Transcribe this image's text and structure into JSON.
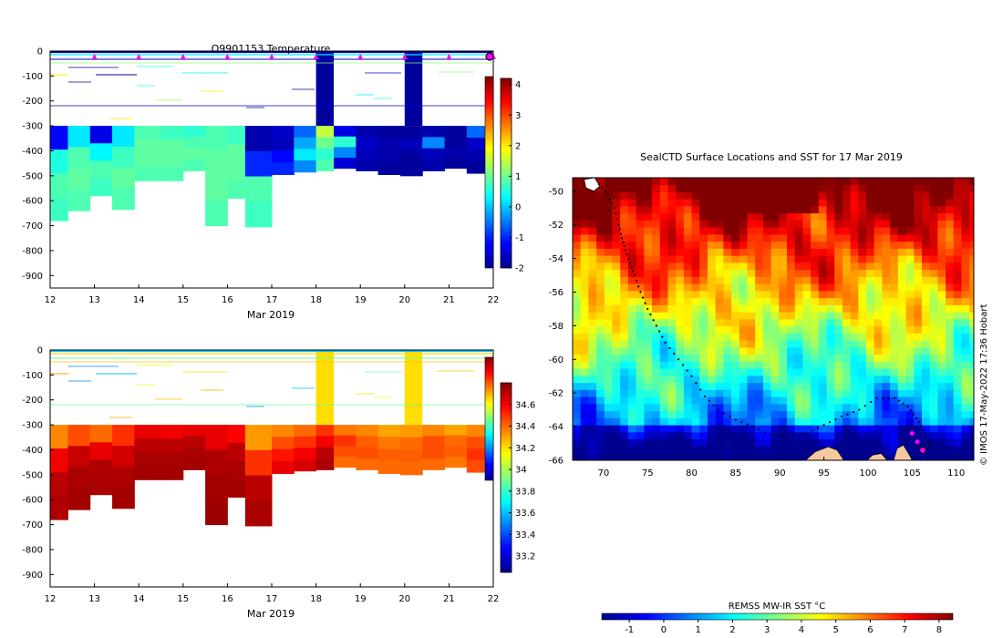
{
  "temperature_panel": {
    "title": "Q9901153  Temperature",
    "xlabel": "Mar 2019",
    "x_ticks": [
      "12",
      "13",
      "14",
      "15",
      "16",
      "17",
      "18",
      "19",
      "20",
      "21",
      "22"
    ],
    "y_ticks": [
      "0",
      "-100",
      "-200",
      "-300",
      "-400",
      "-500",
      "-600",
      "-700",
      "-800",
      "-900"
    ],
    "colorbar_ticks": [
      "4",
      "3",
      "2",
      "1",
      "0",
      "-1",
      "-2"
    ]
  },
  "salinity_panel": {
    "xlabel": "Mar 2019",
    "x_ticks": [
      "12",
      "13",
      "14",
      "15",
      "16",
      "17",
      "18",
      "19",
      "20",
      "21",
      "22"
    ],
    "y_ticks": [
      "0",
      "-100",
      "-200",
      "-300",
      "-400",
      "-500",
      "-600",
      "-700",
      "-800",
      "-900"
    ],
    "colorbar_ticks": [
      "34.6",
      "34.4",
      "34.2",
      "34",
      "33.8",
      "33.6",
      "33.4",
      "33.2"
    ]
  },
  "map_panel": {
    "title": "SealCTD Surface Locations and SST for 17 Mar 2019",
    "lon_ticks": [
      "70",
      "75",
      "80",
      "85",
      "90",
      "95",
      "100",
      "105",
      "110"
    ],
    "lat_ticks": [
      "-50",
      "-52",
      "-54",
      "-56",
      "-58",
      "-60",
      "-62",
      "-64",
      "-66"
    ],
    "credit": "© IMOS 17-May-2022 17:36 Hobart",
    "colorbar_title": "REMSS MW-IR SST °C",
    "colorbar_ticks": [
      "-1",
      "0",
      "1",
      "2",
      "3",
      "4",
      "5",
      "6",
      "7",
      "8"
    ]
  },
  "colors": {
    "jet": [
      "#00008f",
      "#0000ff",
      "#0080ff",
      "#00ffff",
      "#80ff80",
      "#ffff00",
      "#ff8000",
      "#ff0000",
      "#800000"
    ],
    "marker": "#ff00ff",
    "land": "#f5c9a0"
  },
  "chart_data": [
    {
      "type": "heatmap",
      "title": "Q9901153  Temperature",
      "xlabel": "Mar 2019",
      "ylabel": "",
      "xlim": [
        12,
        22
      ],
      "ylim": [
        -950,
        0
      ],
      "clim": [
        -2,
        4.2
      ],
      "surface_marker_days": [
        13,
        14,
        15,
        16,
        17,
        18,
        19,
        20,
        21,
        22
      ],
      "profiles": [
        {
          "day": 12.0,
          "bottom": -680,
          "values": [
            -1.2,
            0.5,
            0.8,
            0.7
          ]
        },
        {
          "day": 12.4,
          "bottom": -640,
          "values": [
            0.2,
            0.8,
            0.9,
            0.8
          ]
        },
        {
          "day": 12.9,
          "bottom": -580,
          "values": [
            -1.4,
            0.3,
            0.8,
            0.7
          ]
        },
        {
          "day": 13.4,
          "bottom": -635,
          "values": [
            0.2,
            0.7,
            0.9,
            0.8
          ]
        },
        {
          "day": 13.9,
          "bottom": -520,
          "values": [
            0.8,
            0.9,
            0.9,
            0.8
          ]
        },
        {
          "day": 14.5,
          "bottom": -520,
          "values": [
            0.7,
            0.9,
            0.9,
            0.8
          ]
        },
        {
          "day": 15.0,
          "bottom": -480,
          "values": [
            0.6,
            0.8,
            0.9,
            0.8
          ]
        },
        {
          "day": 15.5,
          "bottom": -700,
          "values": [
            0.8,
            0.9,
            0.9,
            0.8
          ]
        },
        {
          "day": 16.0,
          "bottom": -590,
          "values": [
            0.7,
            0.9,
            0.9,
            0.8
          ]
        },
        {
          "day": 16.4,
          "bottom": -705,
          "values": [
            -1.8,
            -1.0,
            0.8,
            0.7
          ]
        },
        {
          "day": 17.0,
          "bottom": -495,
          "values": [
            -1.6,
            -1.7,
            -1.2,
            -1.0
          ]
        },
        {
          "day": 17.5,
          "bottom": -485,
          "values": [
            -0.6,
            -0.2,
            0.2,
            -0.4
          ]
        },
        {
          "day": 18.0,
          "bottom": -480,
          "values": [
            1.5,
            1.0,
            0.6,
            0.8
          ]
        },
        {
          "day": 18.4,
          "bottom": -470,
          "values": [
            -1.4,
            0.6,
            -0.4,
            -1.5
          ]
        },
        {
          "day": 18.9,
          "bottom": -480,
          "values": [
            -1.8,
            -1.6,
            -1.7,
            -1.8
          ]
        },
        {
          "day": 19.4,
          "bottom": -495,
          "values": [
            -1.9,
            -1.8,
            -1.8,
            -1.9
          ]
        },
        {
          "day": 19.9,
          "bottom": -500,
          "values": [
            -1.9,
            -1.7,
            -1.9,
            -1.9
          ]
        },
        {
          "day": 20.4,
          "bottom": -480,
          "values": [
            -1.8,
            -0.4,
            -1.7,
            -1.8
          ]
        },
        {
          "day": 20.9,
          "bottom": -470,
          "values": [
            -1.9,
            -1.9,
            -1.8,
            -1.9
          ]
        },
        {
          "day": 21.4,
          "bottom": -490,
          "values": [
            -0.6,
            -1.6,
            -1.8,
            -1.9
          ]
        },
        {
          "day": 21.9,
          "bottom": -495,
          "values": [
            0.8,
            0.5,
            0.2,
            -1.2
          ]
        }
      ],
      "shallow_columns": [
        {
          "day": 18.0,
          "bottom": -300,
          "value": -1.9
        },
        {
          "day": 20.0,
          "bottom": -300,
          "value": -1.9
        }
      ]
    },
    {
      "type": "heatmap",
      "title": "",
      "xlabel": "Mar 2019",
      "ylabel": "",
      "xlim": [
        12,
        22
      ],
      "ylim": [
        -950,
        0
      ],
      "clim": [
        33.05,
        34.8
      ],
      "profiles": [
        {
          "day": 12.0,
          "bottom": -680,
          "values": [
            34.35,
            34.6,
            34.7,
            34.72
          ]
        },
        {
          "day": 12.4,
          "bottom": -640,
          "values": [
            34.45,
            34.68,
            34.73,
            34.74
          ]
        },
        {
          "day": 12.9,
          "bottom": -580,
          "values": [
            34.4,
            34.62,
            34.72,
            34.73
          ]
        },
        {
          "day": 13.4,
          "bottom": -635,
          "values": [
            34.5,
            34.66,
            34.72,
            34.74
          ]
        },
        {
          "day": 13.9,
          "bottom": -520,
          "values": [
            34.62,
            34.7,
            34.73,
            34.74
          ]
        },
        {
          "day": 14.5,
          "bottom": -520,
          "values": [
            34.6,
            34.7,
            34.73,
            34.74
          ]
        },
        {
          "day": 15.0,
          "bottom": -480,
          "values": [
            34.62,
            34.7,
            34.73,
            34.74
          ]
        },
        {
          "day": 15.5,
          "bottom": -700,
          "values": [
            34.62,
            34.72,
            34.74,
            34.75
          ]
        },
        {
          "day": 16.0,
          "bottom": -590,
          "values": [
            34.58,
            34.7,
            34.73,
            34.74
          ]
        },
        {
          "day": 16.4,
          "bottom": -705,
          "values": [
            34.32,
            34.5,
            34.7,
            34.73
          ]
        },
        {
          "day": 17.0,
          "bottom": -495,
          "values": [
            34.35,
            34.45,
            34.55,
            34.62
          ]
        },
        {
          "day": 17.5,
          "bottom": -485,
          "values": [
            34.4,
            34.5,
            34.6,
            34.65
          ]
        },
        {
          "day": 18.0,
          "bottom": -480,
          "values": [
            34.5,
            34.6,
            34.7,
            34.72
          ]
        },
        {
          "day": 18.4,
          "bottom": -470,
          "values": [
            34.38,
            34.5,
            34.45,
            34.4
          ]
        },
        {
          "day": 18.9,
          "bottom": -480,
          "values": [
            34.35,
            34.42,
            34.45,
            34.4
          ]
        },
        {
          "day": 19.4,
          "bottom": -495,
          "values": [
            34.3,
            34.38,
            34.42,
            34.4
          ]
        },
        {
          "day": 19.9,
          "bottom": -500,
          "values": [
            34.32,
            34.4,
            34.42,
            34.4
          ]
        },
        {
          "day": 20.4,
          "bottom": -480,
          "values": [
            34.35,
            34.45,
            34.45,
            34.4
          ]
        },
        {
          "day": 20.9,
          "bottom": -470,
          "values": [
            34.3,
            34.4,
            34.42,
            34.38
          ]
        },
        {
          "day": 21.4,
          "bottom": -490,
          "values": [
            34.35,
            34.45,
            34.5,
            34.45
          ]
        },
        {
          "day": 21.9,
          "bottom": -495,
          "values": [
            34.4,
            34.5,
            34.6,
            34.55
          ]
        }
      ],
      "shallow_columns": [
        {
          "day": 18.0,
          "bottom": -300,
          "value": 34.2
        },
        {
          "day": 20.0,
          "bottom": -300,
          "value": 34.2
        }
      ]
    },
    {
      "type": "heatmap",
      "title": "SealCTD Surface Locations and SST for 17 Mar 2019",
      "xlabel": "",
      "ylabel": "",
      "xlim": [
        66.5,
        112
      ],
      "ylim": [
        -66,
        -49.2
      ],
      "colorbar_label": "REMSS MW-IR SST °C",
      "clim": [
        -1.8,
        8.4
      ],
      "track": [
        [
          69.5,
          -49.6
        ],
        [
          70.5,
          -50.2
        ],
        [
          71.2,
          -51.0
        ],
        [
          71.7,
          -52.0
        ],
        [
          72.1,
          -52.8
        ],
        [
          72.5,
          -53.5
        ],
        [
          73.0,
          -54.3
        ],
        [
          73.5,
          -55.0
        ],
        [
          74.2,
          -56.0
        ],
        [
          75.0,
          -57.0
        ],
        [
          76.0,
          -58.0
        ],
        [
          77.0,
          -59.0
        ],
        [
          78.5,
          -60.0
        ],
        [
          80.0,
          -61.0
        ],
        [
          81.5,
          -62.2
        ],
        [
          83.0,
          -63.0
        ],
        [
          85.0,
          -63.6
        ],
        [
          87.0,
          -64.0
        ],
        [
          89.0,
          -64.5
        ],
        [
          91.0,
          -64.6
        ],
        [
          93.0,
          -64.4
        ],
        [
          95.0,
          -63.9
        ],
        [
          97.0,
          -63.4
        ],
        [
          99.0,
          -63.0
        ],
        [
          101.0,
          -62.3
        ],
        [
          103.0,
          -62.3
        ],
        [
          104.5,
          -62.8
        ],
        [
          105.5,
          -63.5
        ],
        [
          106.3,
          -64.2
        ],
        [
          106.8,
          -64.9
        ],
        [
          107.3,
          -65.3
        ]
      ],
      "surface_points": [
        [
          105.0,
          -64.4
        ],
        [
          105.6,
          -64.9
        ],
        [
          106.2,
          -65.4
        ]
      ],
      "latest_point": [
        106.2,
        -65.4
      ]
    }
  ]
}
